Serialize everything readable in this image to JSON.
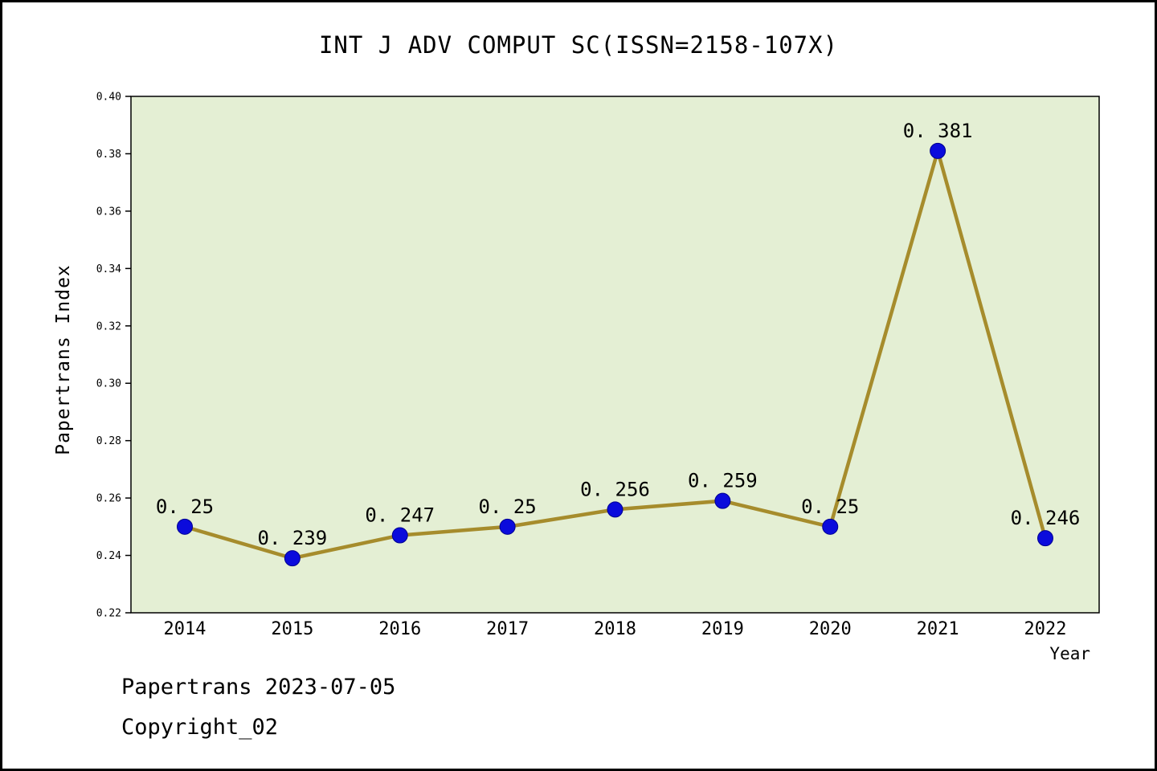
{
  "title": "INT J ADV COMPUT SC(ISSN=2158-107X)",
  "axes": {
    "x_label": "Year",
    "y_label": "Papertrans Index"
  },
  "footer": {
    "line1": "Papertrans 2023-07-05",
    "line2": "Copyright_02"
  },
  "chart_data": {
    "type": "line",
    "title": "INT J ADV COMPUT SC(ISSN=2158-107X)",
    "xlabel": "Year",
    "ylabel": "Papertrans Index",
    "categories": [
      "2014",
      "2015",
      "2016",
      "2017",
      "2018",
      "2019",
      "2020",
      "2021",
      "2022"
    ],
    "values": [
      0.25,
      0.239,
      0.247,
      0.25,
      0.256,
      0.259,
      0.25,
      0.381,
      0.246
    ],
    "point_labels": [
      "0. 25",
      "0. 239",
      "0. 247",
      "0. 25",
      "0. 256",
      "0. 259",
      "0. 25",
      "0. 381",
      "0. 246"
    ],
    "ylim": [
      0.22,
      0.4
    ],
    "ytick_step": 0.02,
    "y_ticks": [
      "0.22",
      "0.24",
      "0.26",
      "0.28",
      "0.30",
      "0.32",
      "0.34",
      "0.36",
      "0.38",
      "0.40"
    ],
    "grid": false,
    "legend": "none",
    "colors": {
      "line": "#a68c2c",
      "marker": "#0b0bdc",
      "marker_edge": "#000090",
      "plot_bg": "#e4efd4",
      "axis": "#000000"
    }
  }
}
